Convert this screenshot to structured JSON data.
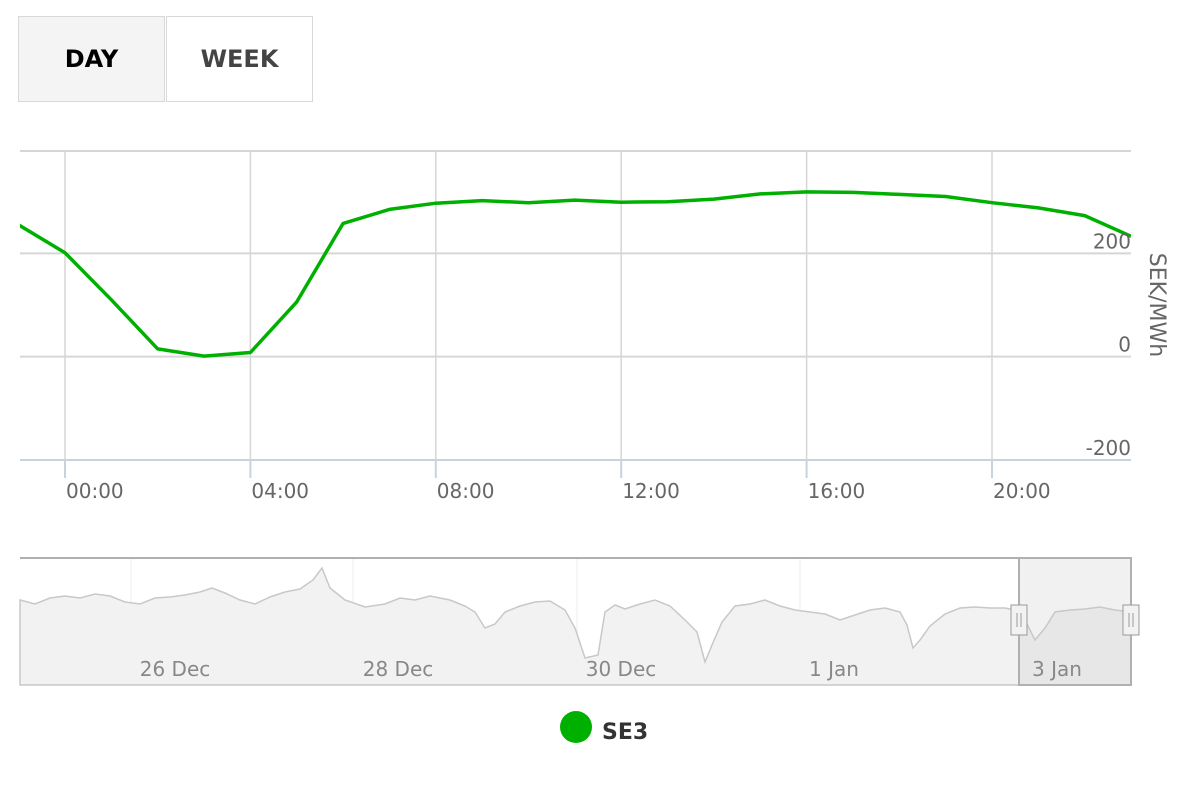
{
  "tabs": [
    {
      "label": "DAY",
      "active": true
    },
    {
      "label": "WEEK",
      "active": false
    }
  ],
  "chart_data": {
    "type": "line",
    "title": "",
    "xlabel": "",
    "ylabel": "SEK/MWh",
    "ylim": [
      -200,
      400
    ],
    "y_ticks": [
      "200",
      "0",
      "-200"
    ],
    "x_ticks": [
      "00:00",
      "04:00",
      "08:00",
      "12:00",
      "16:00",
      "20:00"
    ],
    "grid": true,
    "axis_position": "right",
    "series": [
      {
        "name": "SE3",
        "color": "#00b000",
        "x": [
          -1,
          0,
          1,
          2,
          3,
          4,
          5,
          6,
          7,
          8,
          9,
          10,
          11,
          12,
          13,
          14,
          15,
          16,
          17,
          18,
          19,
          20,
          21,
          22,
          23
        ],
        "values": [
          255,
          201,
          110,
          15,
          1,
          8,
          106,
          258,
          285,
          297,
          302,
          298,
          303,
          299,
          300,
          305,
          315,
          319,
          318,
          314,
          310,
          298,
          288,
          273,
          233
        ]
      }
    ],
    "navigator": {
      "x_ticks": [
        "26 Dec",
        "28 Dec",
        "30 Dec",
        "1 Jan",
        "3 Jan"
      ]
    },
    "legend": {
      "position": "bottom-center",
      "items": [
        "SE3"
      ]
    }
  }
}
